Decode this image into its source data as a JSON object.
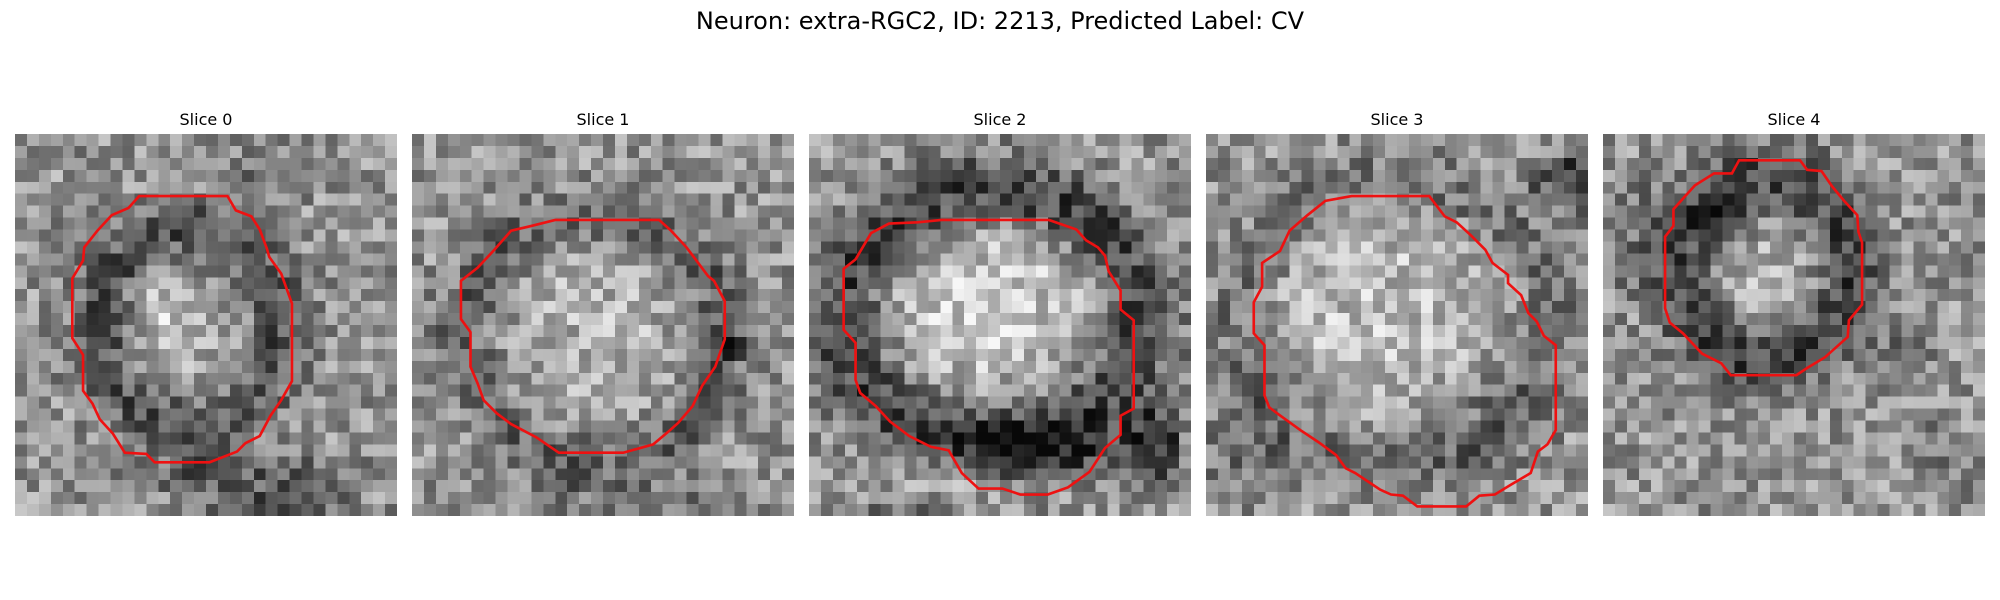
{
  "figure": {
    "title": "Neuron: extra-RGC2, ID: 2213, Predicted Label: CV"
  },
  "panels": [
    {
      "title": "Slice 0",
      "contour": [
        [
          12.4,
          5.2
        ],
        [
          17.8,
          5.2
        ],
        [
          18.5,
          6.4
        ],
        [
          19.8,
          6.9
        ],
        [
          20.5,
          8.0
        ],
        [
          21.1,
          9.6
        ],
        [
          21.3,
          10.3
        ],
        [
          22.3,
          11.7
        ],
        [
          23.2,
          14.2
        ],
        [
          23.2,
          20.7
        ],
        [
          22.3,
          22.3
        ],
        [
          21.4,
          23.6
        ],
        [
          20.5,
          25.3
        ],
        [
          19.3,
          25.9
        ],
        [
          18.6,
          26.6
        ],
        [
          16.3,
          27.5
        ],
        [
          11.7,
          27.5
        ],
        [
          11.0,
          26.8
        ],
        [
          9.2,
          26.7
        ],
        [
          8.2,
          25.1
        ],
        [
          7.1,
          23.9
        ],
        [
          6.5,
          22.6
        ],
        [
          5.7,
          21.5
        ],
        [
          5.7,
          18.5
        ],
        [
          4.8,
          17.1
        ],
        [
          4.8,
          12.1
        ],
        [
          5.7,
          10.6
        ],
        [
          5.8,
          9.5
        ],
        [
          6.9,
          8.1
        ],
        [
          8.1,
          6.8
        ],
        [
          9.5,
          6.2
        ],
        [
          10.4,
          5.2
        ]
      ],
      "contour_color": "#ee1111",
      "seed": 101,
      "features": [
        {
          "type": "ring",
          "cx": 14.6,
          "cy": 16.3,
          "rx": 7.6,
          "ry": 8.4,
          "width": 2.7,
          "value": -0.26
        },
        {
          "type": "ellipse",
          "cx": 14.6,
          "cy": 16.4,
          "rx": 3.8,
          "ry": 4.2,
          "value": 0.12
        },
        {
          "type": "ellipse",
          "cx": 12.1,
          "cy": 14.2,
          "rx": 2.4,
          "ry": 2.6,
          "value": 0.12
        },
        {
          "type": "ellipse",
          "cx": 21.0,
          "cy": 3.3,
          "rx": 3.5,
          "ry": 2.6,
          "value": -0.12
        },
        {
          "type": "ellipse",
          "cx": 20.0,
          "cy": 28.7,
          "rx": 9.5,
          "ry": 1.9,
          "value": -0.22
        },
        {
          "type": "ellipse",
          "cx": 22.8,
          "cy": 31.5,
          "rx": 7.0,
          "ry": 1.5,
          "value": -0.18
        }
      ]
    },
    {
      "title": "Slice 1",
      "contour": [
        [
          12.0,
          7.2
        ],
        [
          20.7,
          7.2
        ],
        [
          21.7,
          8.1
        ],
        [
          23.0,
          9.5
        ],
        [
          24.8,
          11.9
        ],
        [
          25.3,
          12.3
        ],
        [
          26.2,
          14.0
        ],
        [
          26.2,
          17.2
        ],
        [
          25.4,
          19.5
        ],
        [
          24.3,
          21.1
        ],
        [
          23.5,
          22.8
        ],
        [
          22.3,
          24.2
        ],
        [
          21.4,
          25.0
        ],
        [
          20.2,
          26.0
        ],
        [
          17.7,
          26.7
        ],
        [
          12.3,
          26.7
        ],
        [
          10.4,
          25.4
        ],
        [
          8.3,
          24.3
        ],
        [
          7.1,
          23.4
        ],
        [
          6.0,
          22.3
        ],
        [
          5.5,
          20.9
        ],
        [
          4.9,
          19.5
        ],
        [
          4.9,
          16.6
        ],
        [
          4.1,
          15.5
        ],
        [
          4.1,
          12.3
        ],
        [
          5.5,
          11.2
        ],
        [
          6.9,
          9.7
        ],
        [
          8.3,
          8.1
        ],
        [
          10.0,
          7.7
        ]
      ],
      "contour_color": "#ee1111",
      "seed": 202,
      "features": [
        {
          "type": "ring",
          "cx": 15.3,
          "cy": 17.0,
          "rx": 11.0,
          "ry": 10.2,
          "width": 2.4,
          "value": -0.2
        },
        {
          "type": "ellipse",
          "cx": 15.2,
          "cy": 17.0,
          "rx": 7.5,
          "ry": 8.0,
          "value": 0.12
        },
        {
          "type": "ellipse",
          "cx": 26.5,
          "cy": 17.5,
          "rx": 1.0,
          "ry": 2.2,
          "value": -0.22
        },
        {
          "type": "ellipse",
          "cx": 16.0,
          "cy": 30.5,
          "rx": 12.0,
          "ry": 2.0,
          "value": -0.1
        }
      ]
    },
    {
      "title": "Slice 2",
      "contour": [
        [
          11.1,
          7.2
        ],
        [
          20.1,
          7.2
        ],
        [
          22.4,
          8.0
        ],
        [
          23.2,
          8.9
        ],
        [
          24.2,
          9.5
        ],
        [
          24.8,
          10.2
        ],
        [
          25.1,
          11.5
        ],
        [
          26.1,
          13.1
        ],
        [
          26.1,
          14.7
        ],
        [
          27.2,
          15.6
        ],
        [
          27.2,
          23.0
        ],
        [
          26.1,
          23.6
        ],
        [
          26.1,
          25.2
        ],
        [
          24.8,
          26.3
        ],
        [
          23.5,
          28.3
        ],
        [
          21.7,
          29.6
        ],
        [
          20.0,
          30.2
        ],
        [
          17.7,
          30.2
        ],
        [
          16.2,
          29.7
        ],
        [
          14.2,
          29.7
        ],
        [
          12.8,
          28.4
        ],
        [
          11.7,
          26.5
        ],
        [
          10.2,
          26.2
        ],
        [
          8.4,
          25.3
        ],
        [
          6.8,
          24.1
        ],
        [
          5.6,
          22.8
        ],
        [
          4.3,
          21.7
        ],
        [
          3.9,
          20.6
        ],
        [
          3.9,
          17.5
        ],
        [
          2.9,
          16.4
        ],
        [
          2.9,
          11.3
        ],
        [
          3.9,
          10.5
        ],
        [
          5.2,
          8.3
        ],
        [
          6.7,
          7.5
        ],
        [
          9.1,
          7.4
        ]
      ],
      "contour_color": "#ee1111",
      "seed": 303,
      "features": [
        {
          "type": "ring",
          "cx": 15.2,
          "cy": 15.3,
          "rx": 12.3,
          "ry": 10.6,
          "width": 3.4,
          "value": -0.32
        },
        {
          "type": "ellipse",
          "cx": 15.4,
          "cy": 14.5,
          "rx": 9.5,
          "ry": 6.9,
          "value": 0.2
        },
        {
          "type": "ellipse",
          "cx": 19.5,
          "cy": 26.5,
          "rx": 7.8,
          "ry": 2.6,
          "value": -0.26
        },
        {
          "type": "ellipse",
          "cx": 13.5,
          "cy": 28.5,
          "rx": 5.5,
          "ry": 2.0,
          "value": 0.12
        },
        {
          "type": "ellipse",
          "cx": 28.8,
          "cy": 26.0,
          "rx": 2.6,
          "ry": 3.6,
          "value": -0.34
        },
        {
          "type": "ellipse",
          "cx": 7.0,
          "cy": 32.5,
          "rx": 6.0,
          "ry": 1.5,
          "value": -0.16
        }
      ]
    },
    {
      "title": "Slice 3",
      "contour": [
        [
          12.2,
          5.2
        ],
        [
          18.7,
          5.2
        ],
        [
          20.0,
          6.9
        ],
        [
          21.0,
          7.4
        ],
        [
          22.2,
          8.5
        ],
        [
          23.4,
          9.7
        ],
        [
          24.0,
          10.8
        ],
        [
          25.3,
          11.8
        ],
        [
          25.3,
          12.5
        ],
        [
          26.4,
          13.5
        ],
        [
          27.0,
          15.0
        ],
        [
          27.7,
          15.7
        ],
        [
          28.3,
          16.9
        ],
        [
          29.3,
          17.7
        ],
        [
          29.3,
          24.8
        ],
        [
          28.6,
          26.0
        ],
        [
          27.8,
          26.6
        ],
        [
          27.2,
          28.4
        ],
        [
          25.5,
          29.4
        ],
        [
          24.2,
          30.2
        ],
        [
          22.9,
          30.3
        ],
        [
          21.8,
          31.2
        ],
        [
          17.7,
          31.2
        ],
        [
          16.5,
          30.3
        ],
        [
          15.5,
          30.2
        ],
        [
          14.6,
          29.8
        ],
        [
          12.5,
          28.4
        ],
        [
          11.7,
          28.0
        ],
        [
          10.9,
          26.9
        ],
        [
          9.4,
          25.8
        ],
        [
          7.9,
          24.8
        ],
        [
          6.1,
          23.5
        ],
        [
          5.3,
          22.9
        ],
        [
          4.9,
          21.9
        ],
        [
          4.9,
          17.7
        ],
        [
          4.0,
          16.7
        ],
        [
          4.0,
          14.1
        ],
        [
          4.7,
          12.8
        ],
        [
          4.7,
          10.8
        ],
        [
          6.2,
          9.8
        ],
        [
          7.0,
          8.1
        ],
        [
          8.5,
          6.8
        ],
        [
          10.0,
          5.6
        ]
      ],
      "contour_color": "#ee1111",
      "seed": 404,
      "features": [
        {
          "type": "ring",
          "cx": 16.1,
          "cy": 16.0,
          "rx": 13.2,
          "ry": 12.2,
          "width": 2.6,
          "value": -0.14
        },
        {
          "type": "ellipse",
          "cx": 14.5,
          "cy": 15.0,
          "rx": 9.2,
          "ry": 8.2,
          "value": 0.16
        },
        {
          "type": "ellipse",
          "cx": 31.2,
          "cy": 4.0,
          "rx": 1.8,
          "ry": 2.8,
          "value": -0.36
        },
        {
          "type": "ellipse",
          "cx": 28.5,
          "cy": 4.5,
          "rx": 1.4,
          "ry": 1.6,
          "value": -0.2
        },
        {
          "type": "ellipse",
          "cx": 3.0,
          "cy": 26.5,
          "rx": 3.8,
          "ry": 4.5,
          "value": -0.12
        },
        {
          "type": "ellipse",
          "cx": 22.0,
          "cy": 23.5,
          "rx": 6.0,
          "ry": 4.0,
          "value": -0.08
        }
      ]
    },
    {
      "title": "Slice 4",
      "contour": [
        [
          11.4,
          2.2
        ],
        [
          16.5,
          2.2
        ],
        [
          17.1,
          3.0
        ],
        [
          18.3,
          3.1
        ],
        [
          19.2,
          4.4
        ],
        [
          20.2,
          5.6
        ],
        [
          21.3,
          6.8
        ],
        [
          21.4,
          8.2
        ],
        [
          21.7,
          9.1
        ],
        [
          21.7,
          14.3
        ],
        [
          20.6,
          15.6
        ],
        [
          20.5,
          17.0
        ],
        [
          18.6,
          18.7
        ],
        [
          17.1,
          19.6
        ],
        [
          16.2,
          20.2
        ],
        [
          10.7,
          20.2
        ],
        [
          9.9,
          19.2
        ],
        [
          8.3,
          18.4
        ],
        [
          6.7,
          16.7
        ],
        [
          5.6,
          15.8
        ],
        [
          5.2,
          14.6
        ],
        [
          5.2,
          8.6
        ],
        [
          5.9,
          7.7
        ],
        [
          5.9,
          6.3
        ],
        [
          6.8,
          5.3
        ],
        [
          7.7,
          4.3
        ],
        [
          9.3,
          3.3
        ],
        [
          10.8,
          3.3
        ]
      ],
      "contour_color": "#ee1111",
      "seed": 505,
      "features": [
        {
          "type": "ring",
          "cx": 13.6,
          "cy": 11.2,
          "rx": 7.3,
          "ry": 7.8,
          "width": 2.8,
          "value": -0.32
        },
        {
          "type": "ellipse",
          "cx": 13.8,
          "cy": 12.2,
          "rx": 3.3,
          "ry": 3.2,
          "value": 0.12
        },
        {
          "type": "ellipse",
          "cx": 10.0,
          "cy": 7.5,
          "rx": 2.5,
          "ry": 2.0,
          "value": -0.18
        },
        {
          "type": "ellipse",
          "cx": 3.0,
          "cy": 8.5,
          "rx": 2.8,
          "ry": 5.5,
          "value": -0.1
        },
        {
          "type": "ellipse",
          "cx": 25.0,
          "cy": 18.5,
          "rx": 2.5,
          "ry": 2.6,
          "value": -0.12
        },
        {
          "type": "ellipse",
          "cx": 28.0,
          "cy": 27.0,
          "rx": 2.5,
          "ry": 4.0,
          "value": -0.1
        }
      ]
    }
  ]
}
